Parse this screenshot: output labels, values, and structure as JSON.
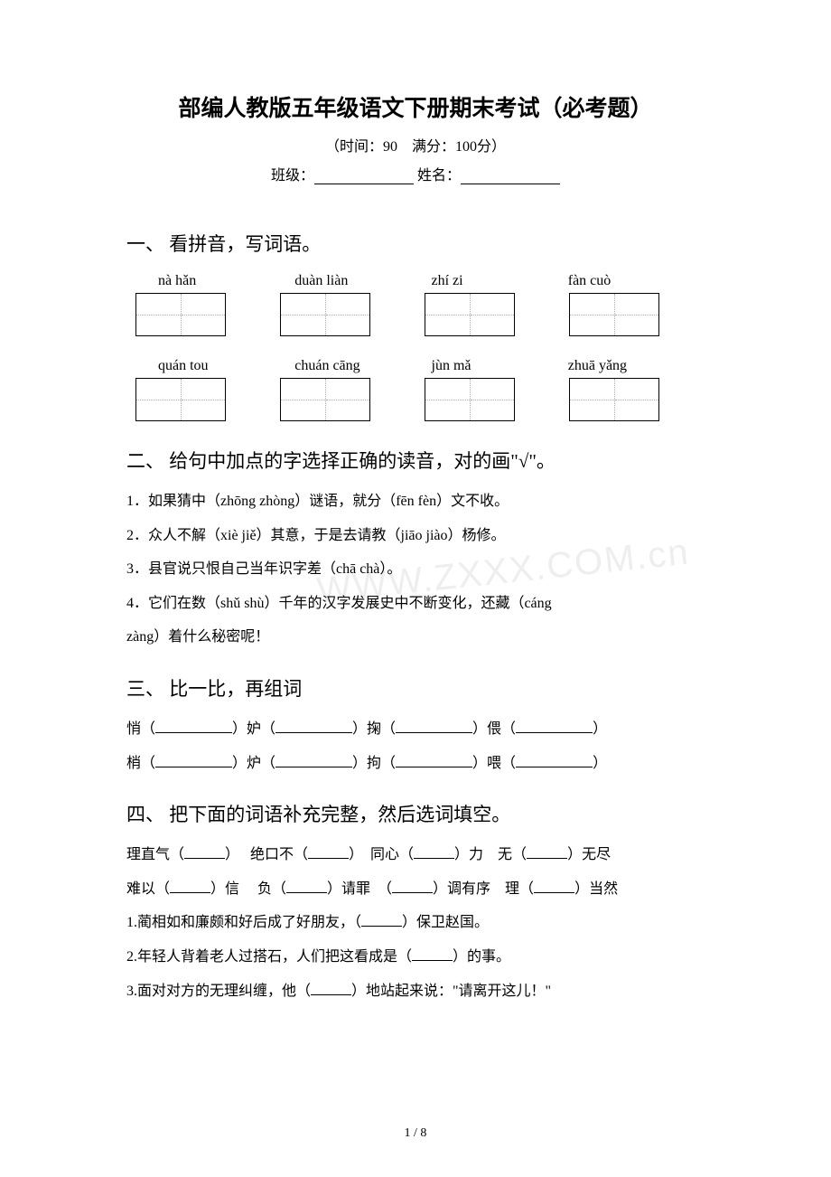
{
  "header": {
    "title": "部编人教版五年级语文下册期末考试（必考题）",
    "time_score": "（时间：90　满分：100分）",
    "class_label": "班级：",
    "name_label": "姓名："
  },
  "section1": {
    "title": "一、 看拼音，写词语。",
    "row1": [
      "nà hǎn",
      "duàn liàn",
      "zhí zi",
      "fàn cuò"
    ],
    "row2": [
      "quán tou",
      "chuán cāng",
      "jùn mǎ",
      "zhuā yǎng"
    ]
  },
  "section2": {
    "title": "二、 给句中加点的字选择正确的读音，对的画\"√\"。",
    "q1": "1．如果猜中（zhōng zhòng）谜语，就分（fēn fèn）文不收。",
    "q2": "2．众人不解（xiè jiě）其意，于是去请教（jiāo jiào）杨修。",
    "q3": "3．县官说只恨自己当年识字差（chā chà）。",
    "q4a": "4．它们在数（shǔ shù）千年的汉字发展史中不断变化，还藏（cáng",
    "q4b": "zàng）着什么秘密呢！"
  },
  "section3": {
    "title": "三、 比一比，再组词",
    "chars": {
      "a1": "悄（",
      "a2": "）妒（",
      "a3": "）掬（",
      "a4": "）偎（",
      "a5": "）",
      "b1": "梢（",
      "b2": "）炉（",
      "b3": "）拘（",
      "b4": "）喂（",
      "b5": "）"
    }
  },
  "section4": {
    "title": "四、 把下面的词语补充完整，然后选词填空。",
    "l1a": "理直气（",
    "l1b": "）　 绝口不（",
    "l1c": "）　同心（",
    "l1d": "）力　无（",
    "l1e": "）无尽",
    "l2a": "难以（",
    "l2b": "）信　 负（",
    "l2c": "）请罪　（",
    "l2d": "）调有序　理（",
    "l2e": "）当然",
    "q1a": "1.蔺相如和廉颇和好后成了好朋友，（",
    "q1b": "）保卫赵国。",
    "q2a": "2.年轻人背着老人过搭石，人们把这看成是（",
    "q2b": "）的事。",
    "q3a": "3.面对对方的无理纠缠，他（",
    "q3b": "）地站起来说：\"请离开这儿！\""
  },
  "pagenum": "1 / 8",
  "watermark": "WWW.ZXXX.COM.cn",
  "style": {
    "bg": "#ffffff",
    "text": "#000000",
    "dotted": "#aaaaaa"
  }
}
